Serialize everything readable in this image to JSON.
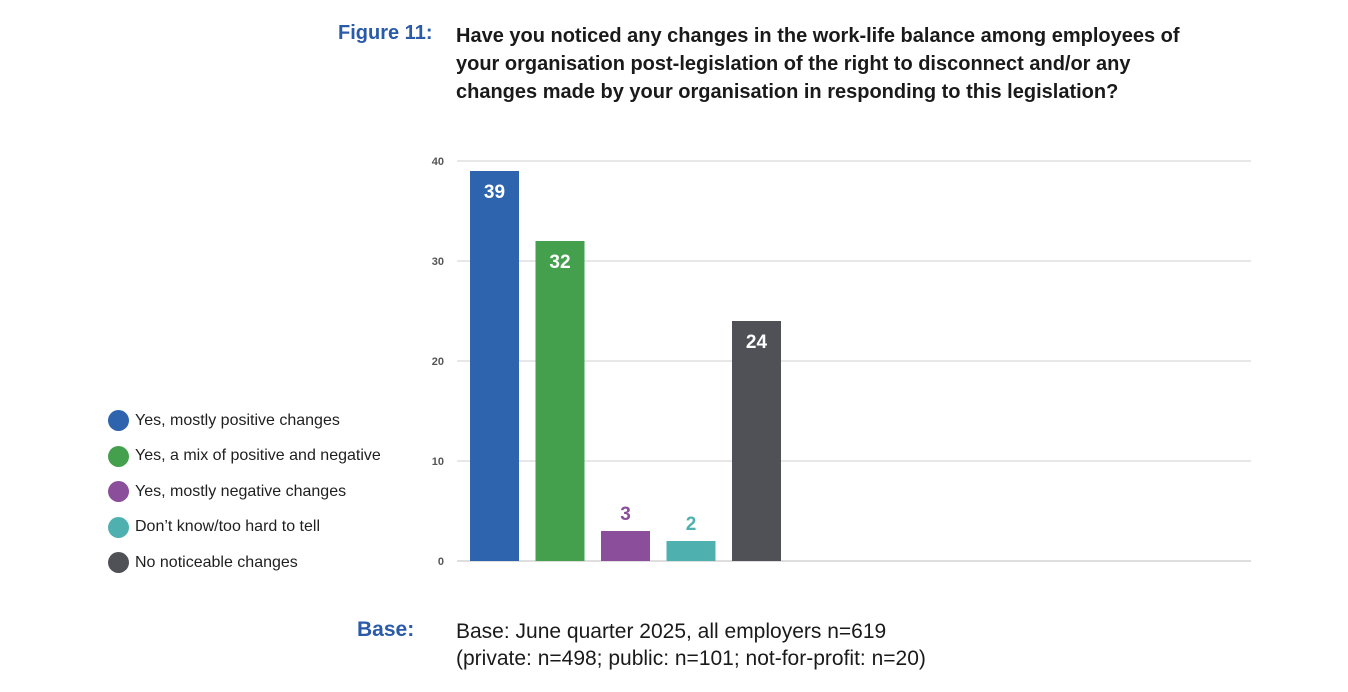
{
  "figure": {
    "label": "Figure 11:",
    "title": "Have you noticed any changes in the work-life balance among employees of your organisation post-legislation of the right to disconnect and/or any changes made by your organisation in responding to this legislation?"
  },
  "chart_data": {
    "type": "bar",
    "categories": [
      "Yes, mostly positive changes",
      "Yes, a mix of positive and negative",
      "Yes, mostly negative changes",
      "Don’t know/too hard to tell",
      "No noticeable changes"
    ],
    "values": [
      39,
      32,
      3,
      2,
      24
    ],
    "colors": [
      "#2d64ad",
      "#45a04e",
      "#8b4e9a",
      "#4fb0b0",
      "#505157"
    ],
    "label_colors": [
      "#ffffff",
      "#ffffff",
      "#8b4e9a",
      "#4fb0b0",
      "#ffffff"
    ],
    "label_inside": [
      true,
      true,
      false,
      false,
      true
    ],
    "ylim": [
      0,
      40
    ],
    "yticks": [
      0,
      10,
      20,
      30,
      40
    ],
    "grid": true,
    "legend_position": "left",
    "xlabel": "",
    "ylabel": ""
  },
  "legend": {
    "items": [
      {
        "label": "Yes, mostly positive changes",
        "color": "#2d64ad"
      },
      {
        "label": "Yes, a mix of positive and negative",
        "color": "#45a04e"
      },
      {
        "label": "Yes, mostly negative changes",
        "color": "#8b4e9a"
      },
      {
        "label": "Don’t know/too hard to tell",
        "color": "#4fb0b0"
      },
      {
        "label": "No noticeable changes",
        "color": "#505157"
      }
    ]
  },
  "base": {
    "label": "Base:",
    "line1": "Base: June quarter 2025, all employers n=619",
    "line2": "(private: n=498; public: n=101; not-for-profit: n=20)"
  }
}
